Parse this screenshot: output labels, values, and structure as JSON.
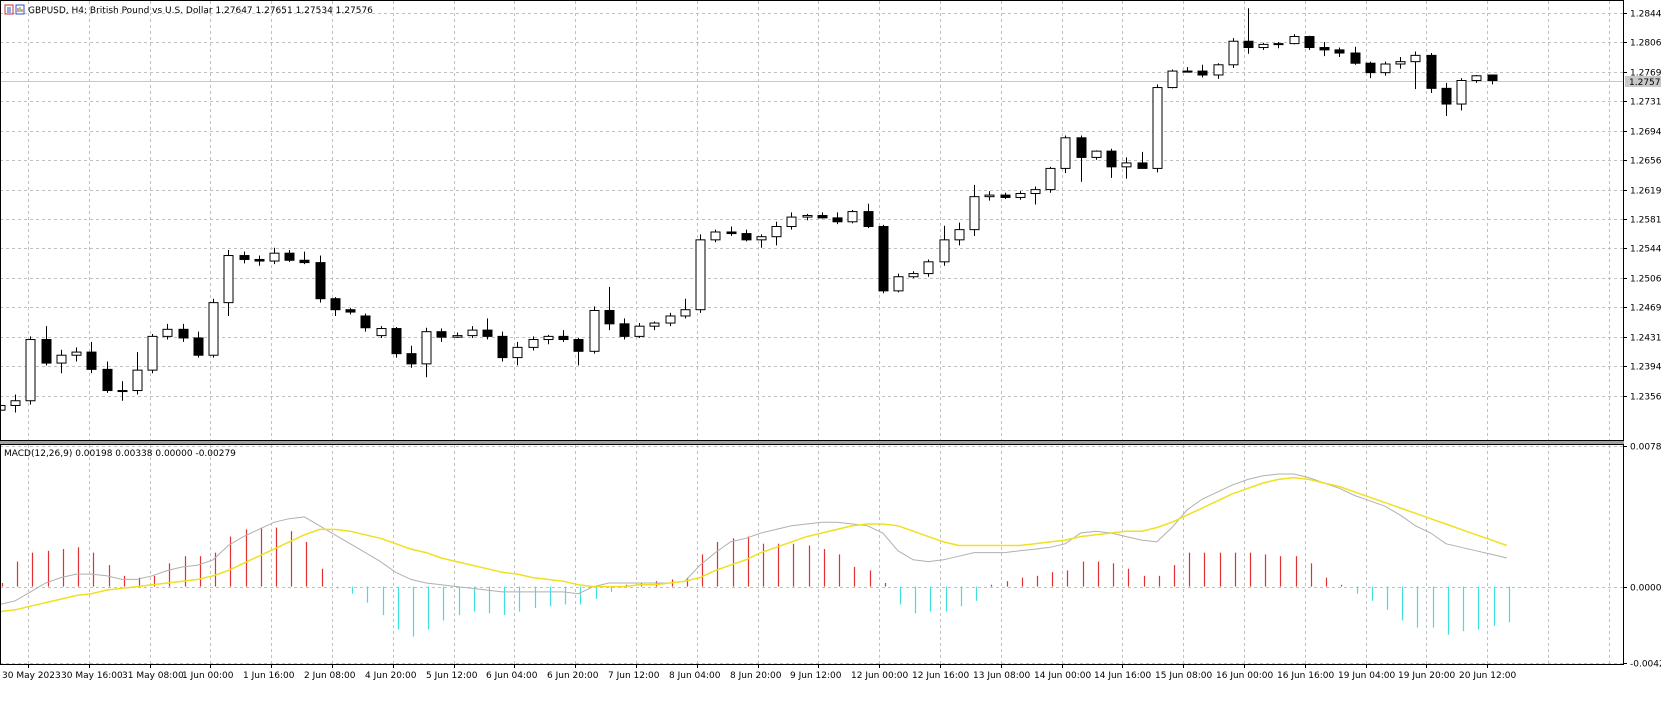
{
  "title": {
    "symbol": "GBPUSD",
    "timeframe": "H4",
    "description": "British Pound vs U.S. Dollar",
    "ohlc": "1.27647 1.27651 1.27534 1.27576",
    "text": "GBPUSD, H4:  British Pound vs U.S. Dollar  1.27647 1.27651 1.27534 1.27576"
  },
  "price_axis": {
    "labels": [
      "1.28440",
      "1.28065",
      "1.27690",
      "1.27315",
      "1.26940",
      "1.26565",
      "1.26190",
      "1.25815",
      "1.25440",
      "1.25065",
      "1.24690",
      "1.24315",
      "1.23940",
      "1.23565"
    ],
    "min": 1.23,
    "max": 1.2858,
    "current_price": "1.27576"
  },
  "indicator": {
    "label": "MACD(12,26,9) 0.00198 0.00338 0.00000 -0.00279",
    "axis_labels": [
      "0.00787",
      "0.00000",
      "-0.00428"
    ],
    "max": 0.00787,
    "min": -0.00428
  },
  "time_axis": {
    "labels": [
      "30 May 2023",
      "30 May 16:00",
      "31 May 08:00",
      "1 Jun 00:00",
      "1 Jun 16:00",
      "2 Jun 08:00",
      "4 Jun 20:00",
      "5 Jun 12:00",
      "6 Jun 04:00",
      "6 Jun 20:00",
      "7 Jun 12:00",
      "8 Jun 04:00",
      "8 Jun 20:00",
      "9 Jun 12:00",
      "12 Jun 00:00",
      "12 Jun 16:00",
      "13 Jun 08:00",
      "14 Jun 00:00",
      "14 Jun 16:00",
      "15 Jun 08:00",
      "16 Jun 00:00",
      "16 Jun 16:00",
      "19 Jun 04:00",
      "19 Jun 20:00",
      "20 Jun 12:00"
    ]
  },
  "colors": {
    "background": "#ffffff",
    "grid": "#c0c0c0",
    "candle_border": "#000000",
    "bull_body": "#ffffff",
    "bear_body": "#000000",
    "macd_positive": "#e03030",
    "macd_negative": "#40e0e0",
    "signal_line": "#f0e020",
    "macd_line": "#b0b0b0",
    "price_line": "#c8c8c8",
    "current_price_label_bg": "#c8c8c8"
  },
  "chart_data": {
    "type": "candlestick",
    "candles": [
      [
        1.2338,
        1.2352,
        1.2308,
        1.2344
      ],
      [
        1.2344,
        1.2358,
        1.2335,
        1.235
      ],
      [
        1.235,
        1.2432,
        1.2345,
        1.2428
      ],
      [
        1.2428,
        1.2445,
        1.2395,
        1.2398
      ],
      [
        1.2398,
        1.2415,
        1.2385,
        1.2408
      ],
      [
        1.2408,
        1.2418,
        1.24,
        1.2412
      ],
      [
        1.2412,
        1.2425,
        1.2385,
        1.239
      ],
      [
        1.239,
        1.24,
        1.236,
        1.2363
      ],
      [
        1.2363,
        1.2375,
        1.235,
        1.2363
      ],
      [
        1.2363,
        1.2412,
        1.2358,
        1.2389
      ],
      [
        1.2389,
        1.2435,
        1.2385,
        1.2432
      ],
      [
        1.2432,
        1.2448,
        1.2428,
        1.2441
      ],
      [
        1.2441,
        1.2448,
        1.2425,
        1.243
      ],
      [
        1.243,
        1.2438,
        1.2405,
        1.2408
      ],
      [
        1.2408,
        1.248,
        1.2405,
        1.2475
      ],
      [
        1.2475,
        1.2542,
        1.2458,
        1.2535
      ],
      [
        1.2535,
        1.254,
        1.2525,
        1.253
      ],
      [
        1.253,
        1.2535,
        1.2522,
        1.2528
      ],
      [
        1.2528,
        1.2545,
        1.2524,
        1.2538
      ],
      [
        1.2538,
        1.2542,
        1.2527,
        1.2529
      ],
      [
        1.2529,
        1.254,
        1.2524,
        1.2526
      ],
      [
        1.2526,
        1.2535,
        1.2475,
        1.248
      ],
      [
        1.248,
        1.2482,
        1.2458,
        1.2466
      ],
      [
        1.2466,
        1.2468,
        1.246,
        1.2463
      ],
      [
        1.2458,
        1.2461,
        1.2438,
        1.2443
      ],
      [
        1.2433,
        1.2445,
        1.243,
        1.2442
      ],
      [
        1.2442,
        1.2444,
        1.2405,
        1.241
      ],
      [
        1.241,
        1.242,
        1.2392,
        1.2397
      ],
      [
        1.2397,
        1.2443,
        1.238,
        1.2438
      ],
      [
        1.2438,
        1.2442,
        1.2425,
        1.2431
      ],
      [
        1.2431,
        1.2437,
        1.243,
        1.2433
      ],
      [
        1.2433,
        1.2445,
        1.243,
        1.244
      ],
      [
        1.244,
        1.2455,
        1.2428,
        1.2432
      ],
      [
        1.2432,
        1.2438,
        1.24,
        1.2405
      ],
      [
        1.2405,
        1.2425,
        1.2395,
        1.2418
      ],
      [
        1.2418,
        1.2432,
        1.2414,
        1.2428
      ],
      [
        1.2428,
        1.2434,
        1.2422,
        1.2432
      ],
      [
        1.2432,
        1.244,
        1.2425,
        1.2428
      ],
      [
        1.2428,
        1.243,
        1.2395,
        1.2413
      ],
      [
        1.2413,
        1.247,
        1.241,
        1.2465
      ],
      [
        1.2465,
        1.2495,
        1.244,
        1.2448
      ],
      [
        1.2448,
        1.2455,
        1.2428,
        1.2432
      ],
      [
        1.2432,
        1.2449,
        1.243,
        1.2445
      ],
      [
        1.2445,
        1.2451,
        1.244,
        1.2449
      ],
      [
        1.2449,
        1.2462,
        1.2445,
        1.2458
      ],
      [
        1.2458,
        1.248,
        1.2455,
        1.2466
      ],
      [
        1.2466,
        1.2562,
        1.2462,
        1.2555
      ],
      [
        1.2555,
        1.2568,
        1.2552,
        1.2565
      ],
      [
        1.2565,
        1.2572,
        1.256,
        1.2563
      ],
      [
        1.2563,
        1.2568,
        1.2553,
        1.2555
      ],
      [
        1.2555,
        1.2562,
        1.2545,
        1.2559
      ],
      [
        1.2559,
        1.2578,
        1.2548,
        1.2572
      ],
      [
        1.2572,
        1.259,
        1.2568,
        1.2584
      ],
      [
        1.2584,
        1.2588,
        1.258,
        1.2586
      ],
      [
        1.2586,
        1.259,
        1.2582,
        1.2583
      ],
      [
        1.2583,
        1.259,
        1.2575,
        1.2578
      ],
      [
        1.2578,
        1.2593,
        1.2576,
        1.2591
      ],
      [
        1.2591,
        1.2601,
        1.257,
        1.2572
      ],
      [
        1.2572,
        1.2574,
        1.2487,
        1.249
      ],
      [
        1.249,
        1.2512,
        1.2488,
        1.2508
      ],
      [
        1.2508,
        1.2515,
        1.2506,
        1.2512
      ],
      [
        1.2512,
        1.253,
        1.2508,
        1.2527
      ],
      [
        1.2527,
        1.2573,
        1.2522,
        1.2555
      ],
      [
        1.2555,
        1.2577,
        1.2548,
        1.2568
      ],
      [
        1.2568,
        1.2625,
        1.256,
        1.261
      ],
      [
        1.261,
        1.2617,
        1.2605,
        1.2612
      ],
      [
        1.2612,
        1.2615,
        1.2607,
        1.2609
      ],
      [
        1.2609,
        1.2617,
        1.2606,
        1.2614
      ],
      [
        1.2614,
        1.2623,
        1.26,
        1.2619
      ],
      [
        1.2619,
        1.2648,
        1.2615,
        1.2646
      ],
      [
        1.2646,
        1.2688,
        1.264,
        1.2685
      ],
      [
        1.2685,
        1.2688,
        1.2629,
        1.266
      ],
      [
        1.266,
        1.2669,
        1.2657,
        1.2668
      ],
      [
        1.2668,
        1.2671,
        1.2634,
        1.2648
      ],
      [
        1.2648,
        1.266,
        1.2633,
        1.2653
      ],
      [
        1.2653,
        1.2667,
        1.2646,
        1.2646
      ],
      [
        1.2646,
        1.2753,
        1.2641,
        1.2749
      ],
      [
        1.2749,
        1.2772,
        1.2748,
        1.277
      ],
      [
        1.277,
        1.2775,
        1.2768,
        1.277
      ],
      [
        1.277,
        1.2778,
        1.2762,
        1.2765
      ],
      [
        1.2765,
        1.278,
        1.276,
        1.2778
      ],
      [
        1.2778,
        1.2812,
        1.2774,
        1.2808
      ],
      [
        1.2808,
        1.285,
        1.2792,
        1.28
      ],
      [
        1.28,
        1.2806,
        1.2797,
        1.2804
      ],
      [
        1.2804,
        1.2807,
        1.2799,
        1.2805
      ],
      [
        1.2805,
        1.2817,
        1.2804,
        1.2814
      ],
      [
        1.2814,
        1.2815,
        1.2797,
        1.28
      ],
      [
        1.28,
        1.2807,
        1.2789,
        1.2797
      ],
      [
        1.2797,
        1.28,
        1.2788,
        1.2793
      ],
      [
        1.2793,
        1.2801,
        1.2778,
        1.278
      ],
      [
        1.278,
        1.2782,
        1.2761,
        1.2768
      ],
      [
        1.2768,
        1.2782,
        1.2764,
        1.2779
      ],
      [
        1.2779,
        1.2788,
        1.2773,
        1.2782
      ],
      [
        1.2782,
        1.2795,
        1.2747,
        1.279
      ],
      [
        1.279,
        1.2793,
        1.2742,
        1.2748
      ],
      [
        1.2748,
        1.2755,
        1.2713,
        1.2728
      ],
      [
        1.2728,
        1.2761,
        1.272,
        1.2758
      ],
      [
        1.2758,
        1.2765,
        1.2755,
        1.2764
      ],
      [
        1.2765,
        1.2765,
        1.2753,
        1.2758
      ]
    ],
    "macd_histogram": [
      0.0002,
      0.0014,
      0.0019,
      0.002,
      0.0021,
      0.0022,
      0.0019,
      0.0012,
      0.0006,
      0.0005,
      0.0006,
      0.0013,
      0.0017,
      0.0017,
      0.0019,
      0.0028,
      0.0032,
      0.0033,
      0.0033,
      0.0031,
      0.0025,
      0.001,
      -0.0001,
      -0.0004,
      -0.0009,
      -0.0016,
      -0.0024,
      -0.0028,
      -0.0024,
      -0.0019,
      -0.0016,
      -0.0014,
      -0.0015,
      -0.0016,
      -0.0014,
      -0.0012,
      -0.0011,
      -0.001,
      -0.001,
      -0.0007,
      -0.0003,
      0.0001,
      0.0002,
      0.0003,
      0.0004,
      0.0005,
      0.0018,
      0.0025,
      0.0027,
      0.0028,
      0.0024,
      0.0024,
      0.0024,
      0.0023,
      0.0021,
      0.0018,
      0.0011,
      0.0009,
      0.0002,
      -0.001,
      -0.0015,
      -0.0014,
      -0.0014,
      -0.0011,
      -0.0008,
      0.0001,
      0.0003,
      0.0005,
      0.0006,
      0.0008,
      0.0009,
      0.0014,
      0.0014,
      0.0013,
      0.001,
      0.0006,
      0.0006,
      0.0012,
      0.0019,
      0.0019,
      0.0019,
      0.0019,
      0.0019,
      0.0018,
      0.0017,
      0.0017,
      0.0013,
      0.0005,
      0.0001,
      -0.0004,
      -0.0008,
      -0.0013,
      -0.0019,
      -0.0023,
      -0.0023,
      -0.0027,
      -0.0025,
      -0.0024,
      -0.0022,
      -0.002
    ],
    "macd_line": [
      -0.001,
      -0.0008,
      -0.0003,
      0.0002,
      0.0005,
      0.0007,
      0.0007,
      0.0006,
      0.0004,
      0.0004,
      0.0006,
      0.0009,
      0.0011,
      0.0012,
      0.0015,
      0.0023,
      0.0028,
      0.0032,
      0.0036,
      0.0038,
      0.0039,
      0.0034,
      0.0029,
      0.0024,
      0.0019,
      0.0014,
      0.0008,
      0.0004,
      0.0002,
      0.0001,
      0.0,
      -0.0001,
      -0.0002,
      -0.0003,
      -0.0003,
      -0.0003,
      -0.0003,
      -0.0003,
      -0.0004,
      0.0,
      0.0002,
      0.0002,
      0.0002,
      0.0002,
      0.0002,
      0.0003,
      0.0012,
      0.0019,
      0.0025,
      0.0027,
      0.003,
      0.0032,
      0.0034,
      0.0035,
      0.0036,
      0.0036,
      0.0035,
      0.0034,
      0.003,
      0.002,
      0.0015,
      0.0014,
      0.0015,
      0.0017,
      0.0019,
      0.0019,
      0.0019,
      0.002,
      0.0021,
      0.0022,
      0.0024,
      0.003,
      0.0031,
      0.003,
      0.0028,
      0.0026,
      0.0025,
      0.0033,
      0.0043,
      0.0049,
      0.0053,
      0.0057,
      0.006,
      0.0062,
      0.0063,
      0.0063,
      0.0061,
      0.0058,
      0.0055,
      0.0051,
      0.0048,
      0.0045,
      0.004,
      0.0034,
      0.003,
      0.0024,
      0.0022,
      0.002,
      0.0018,
      0.0016
    ],
    "signal_line": [
      -0.0014,
      -0.0013,
      -0.0011,
      -0.0009,
      -0.0007,
      -0.0005,
      -0.0004,
      -0.0002,
      -0.0001,
      0.0,
      0.0001,
      0.0002,
      0.0003,
      0.0004,
      0.0006,
      0.0009,
      0.0013,
      0.0017,
      0.0021,
      0.0025,
      0.0029,
      0.0032,
      0.0032,
      0.0031,
      0.0029,
      0.0027,
      0.0024,
      0.0021,
      0.0019,
      0.0016,
      0.0014,
      0.0012,
      0.001,
      0.0008,
      0.0007,
      0.0005,
      0.0004,
      0.0003,
      0.0001,
      0.0,
      0.0,
      0.0,
      0.0001,
      0.0001,
      0.0002,
      0.0003,
      0.0005,
      0.0009,
      0.0012,
      0.0015,
      0.0019,
      0.0022,
      0.0025,
      0.0028,
      0.003,
      0.0032,
      0.0034,
      0.0035,
      0.0035,
      0.0034,
      0.0031,
      0.0028,
      0.0025,
      0.0023,
      0.0023,
      0.0023,
      0.0023,
      0.0023,
      0.0024,
      0.0025,
      0.0026,
      0.0028,
      0.0029,
      0.003,
      0.0031,
      0.0031,
      0.0033,
      0.0036,
      0.004,
      0.0044,
      0.0048,
      0.0052,
      0.0055,
      0.0058,
      0.006,
      0.0061,
      0.006,
      0.0058,
      0.0056,
      0.0053,
      0.005,
      0.0047,
      0.0044,
      0.0041,
      0.0038,
      0.0035,
      0.0032,
      0.0029,
      0.0026,
      0.0023
    ]
  }
}
